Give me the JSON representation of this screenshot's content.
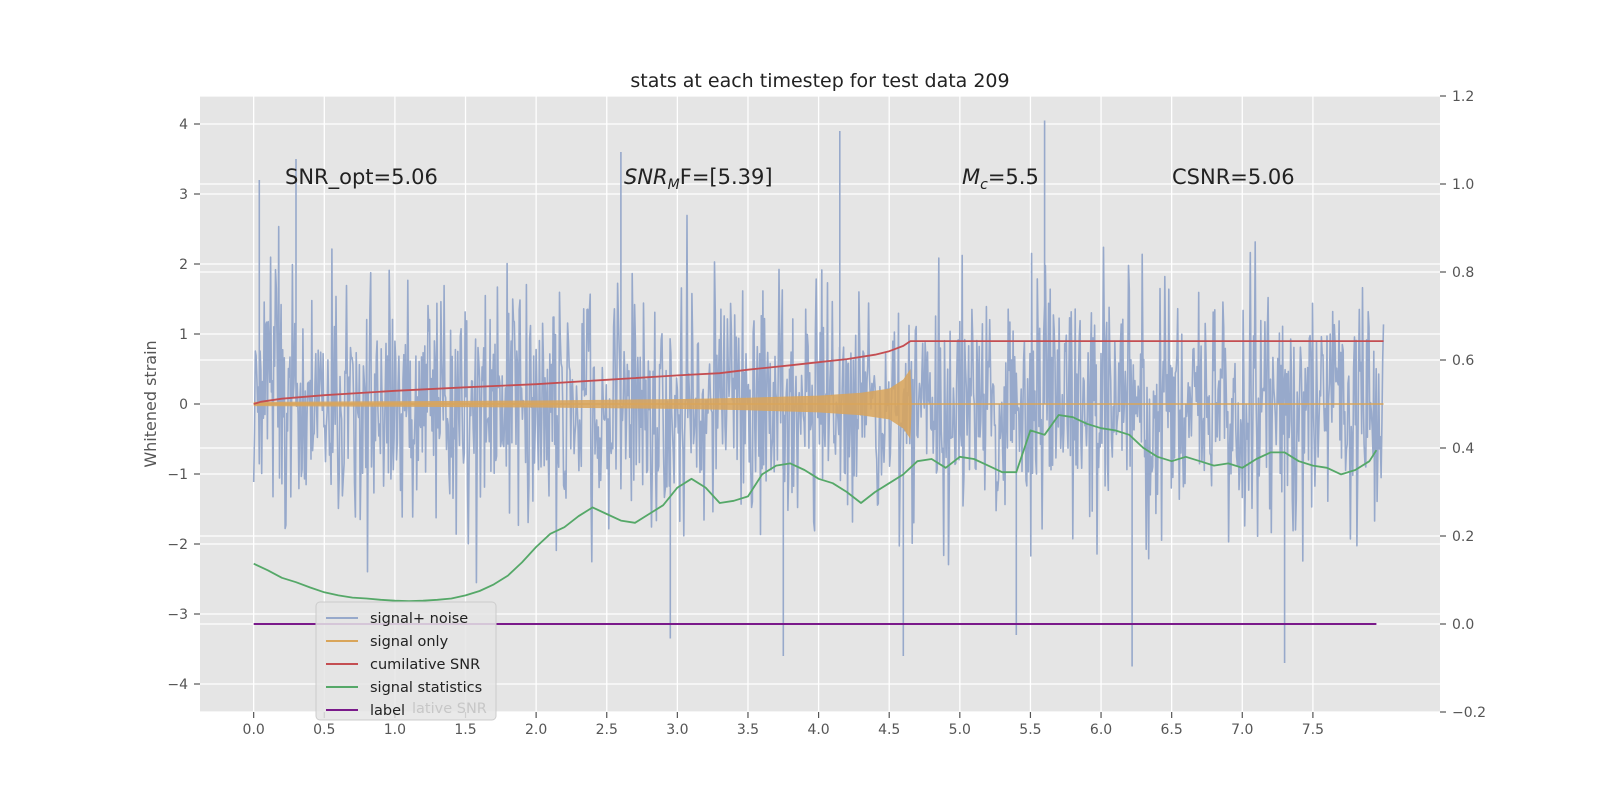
{
  "chart_data": {
    "type": "line",
    "title": "stats at each timestep for test data 209",
    "ylabel": "Whitened strain",
    "xlabel": "",
    "xlim": [
      -0.38,
      8.4
    ],
    "ylim": [
      -4.4,
      4.4
    ],
    "y2lim": [
      -0.2,
      1.2
    ],
    "x_ticks": [
      "0.0",
      "0.5",
      "1.0",
      "1.5",
      "2.0",
      "2.5",
      "3.0",
      "3.5",
      "4.0",
      "4.5",
      "5.0",
      "5.5",
      "6.0",
      "6.5",
      "7.0",
      "7.5"
    ],
    "y_ticks": [
      "4",
      "3",
      "2",
      "1",
      "0",
      "−1",
      "−2",
      "−3",
      "−4"
    ],
    "y2_ticks": [
      "1.2",
      "1.0",
      "0.8",
      "0.6",
      "0.4",
      "0.2",
      "0.0",
      "−0.2"
    ],
    "grid": true,
    "legend_position": "lower-left",
    "annotations": {
      "snr_opt": "SNR_opt=5.06",
      "snr_mf_prefix": "SNR",
      "snr_mf_sub": "M",
      "snr_mf_suffix": "F=[5.39]",
      "mc_prefix": "M",
      "mc_sub": "c",
      "mc_suffix": "=5.5",
      "csnr": "CSNR=5.06"
    },
    "legend": [
      "signal+ noise",
      "signal only",
      "cumilative SNR",
      "signal statistics",
      "label"
    ],
    "legend_overlap_text": "lative SNR",
    "colors": {
      "signal_noise": "#97a9cb",
      "signal_only": "#d9a55a",
      "cumulative_snr": "#c44e52",
      "signal_statistics": "#55a868",
      "label": "#7a1a8a",
      "background": "#e5e5e5",
      "grid": "#ffffff"
    },
    "series": [
      {
        "name": "signal+ noise",
        "axis": "left",
        "x_range": [
          0.0,
          8.0
        ],
        "typical_range": [
          -1.8,
          2.0
        ],
        "peaks": [
          [
            0.04,
            3.2
          ],
          [
            0.3,
            3.5
          ],
          [
            2.6,
            3.6
          ],
          [
            4.15,
            3.9
          ],
          [
            5.6,
            4.05
          ],
          [
            5.4,
            -3.3
          ],
          [
            6.22,
            -3.75
          ],
          [
            4.6,
            -3.6
          ],
          [
            3.75,
            -3.6
          ],
          [
            2.95,
            -3.35
          ],
          [
            7.3,
            -3.7
          ]
        ]
      },
      {
        "name": "signal only",
        "axis": "left",
        "x": [
          0.0,
          1.0,
          2.0,
          3.0,
          3.5,
          4.0,
          4.3,
          4.5,
          4.6,
          4.65,
          4.66,
          8.0
        ],
        "amplitude": [
          0.03,
          0.04,
          0.05,
          0.07,
          0.09,
          0.12,
          0.16,
          0.22,
          0.35,
          0.5,
          0.0,
          0.0
        ]
      },
      {
        "name": "cumilative SNR",
        "axis": "right",
        "x": [
          0.0,
          0.05,
          0.2,
          0.5,
          1.0,
          1.5,
          2.0,
          2.5,
          3.0,
          3.3,
          3.5,
          3.8,
          4.0,
          4.2,
          4.4,
          4.5,
          4.6,
          4.65,
          8.0
        ],
        "y": [
          0.5,
          0.505,
          0.512,
          0.52,
          0.53,
          0.538,
          0.545,
          0.555,
          0.565,
          0.57,
          0.578,
          0.588,
          0.595,
          0.602,
          0.612,
          0.62,
          0.632,
          0.643,
          0.643
        ]
      },
      {
        "name": "signal statistics",
        "axis": "right",
        "x": [
          0.0,
          0.1,
          0.2,
          0.3,
          0.4,
          0.5,
          0.6,
          0.7,
          0.8,
          0.9,
          1.0,
          1.1,
          1.2,
          1.3,
          1.4,
          1.5,
          1.6,
          1.7,
          1.8,
          1.9,
          2.0,
          2.1,
          2.2,
          2.3,
          2.4,
          2.5,
          2.6,
          2.7,
          2.8,
          2.9,
          3.0,
          3.1,
          3.2,
          3.3,
          3.4,
          3.5,
          3.6,
          3.7,
          3.8,
          3.9,
          4.0,
          4.1,
          4.2,
          4.3,
          4.4,
          4.5,
          4.6,
          4.7,
          4.8,
          4.9,
          5.0,
          5.1,
          5.2,
          5.3,
          5.4,
          5.5,
          5.6,
          5.7,
          5.8,
          5.9,
          6.0,
          6.1,
          6.2,
          6.3,
          6.4,
          6.5,
          6.6,
          6.7,
          6.8,
          6.9,
          7.0,
          7.1,
          7.2,
          7.3,
          7.4,
          7.5,
          7.6,
          7.7,
          7.8,
          7.9,
          7.95
        ],
        "y": [
          0.137,
          0.122,
          0.105,
          0.095,
          0.083,
          0.072,
          0.065,
          0.06,
          0.058,
          0.055,
          0.053,
          0.052,
          0.053,
          0.055,
          0.058,
          0.065,
          0.075,
          0.09,
          0.11,
          0.14,
          0.175,
          0.205,
          0.22,
          0.245,
          0.265,
          0.25,
          0.235,
          0.23,
          0.25,
          0.27,
          0.31,
          0.33,
          0.31,
          0.275,
          0.28,
          0.29,
          0.34,
          0.36,
          0.365,
          0.35,
          0.33,
          0.32,
          0.3,
          0.275,
          0.3,
          0.32,
          0.34,
          0.37,
          0.375,
          0.355,
          0.38,
          0.375,
          0.36,
          0.345,
          0.345,
          0.44,
          0.43,
          0.475,
          0.47,
          0.455,
          0.445,
          0.44,
          0.43,
          0.4,
          0.38,
          0.37,
          0.38,
          0.37,
          0.36,
          0.365,
          0.355,
          0.375,
          0.39,
          0.39,
          0.37,
          0.36,
          0.355,
          0.34,
          0.35,
          0.37,
          0.395
        ]
      },
      {
        "name": "label",
        "axis": "right",
        "x": [
          0.0,
          7.95
        ],
        "y": [
          0.0,
          0.0
        ]
      }
    ]
  }
}
